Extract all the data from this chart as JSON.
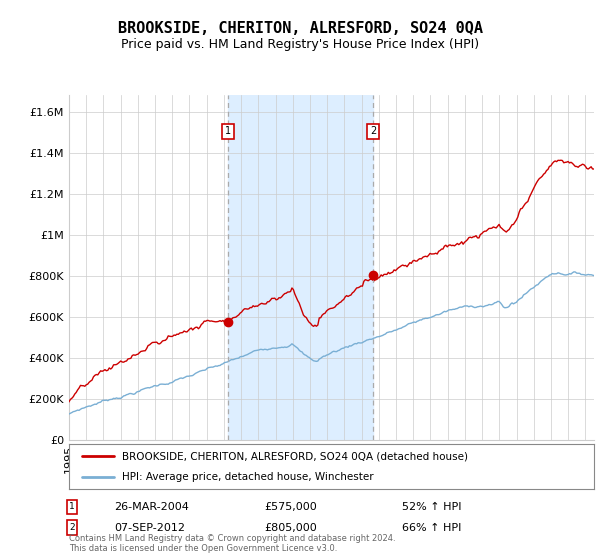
{
  "title": "BROOKSIDE, CHERITON, ALRESFORD, SO24 0QA",
  "subtitle": "Price paid vs. HM Land Registry's House Price Index (HPI)",
  "ylabel_ticks": [
    "£0",
    "£200K",
    "£400K",
    "£600K",
    "£800K",
    "£1M",
    "£1.2M",
    "£1.4M",
    "£1.6M"
  ],
  "ytick_values": [
    0,
    200000,
    400000,
    600000,
    800000,
    1000000,
    1200000,
    1400000,
    1600000
  ],
  "ylim": [
    0,
    1680000
  ],
  "xlim_start": 1995.0,
  "xlim_end": 2025.5,
  "sale1": {
    "date_x": 2004.23,
    "price": 575000,
    "label": "1",
    "date_str": "26-MAR-2004",
    "pct": "52% ↑ HPI"
  },
  "sale2": {
    "date_x": 2012.68,
    "price": 805000,
    "label": "2",
    "date_str": "07-SEP-2012",
    "pct": "66% ↑ HPI"
  },
  "legend_line1_label": "BROOKSIDE, CHERITON, ALRESFORD, SO24 0QA (detached house)",
  "legend_line2_label": "HPI: Average price, detached house, Winchester",
  "footer": "Contains HM Land Registry data © Crown copyright and database right 2024.\nThis data is licensed under the Open Government Licence v3.0.",
  "line1_color": "#cc0000",
  "line2_color": "#7aafd4",
  "shade_color": "#ddeeff",
  "vline_color": "#aaaaaa",
  "box_edge_color": "#cc0000",
  "background_color": "#ffffff",
  "grid_color": "#cccccc",
  "title_fontsize": 11,
  "subtitle_fontsize": 9,
  "tick_fontsize": 8,
  "fig_width": 6.0,
  "fig_height": 5.6
}
